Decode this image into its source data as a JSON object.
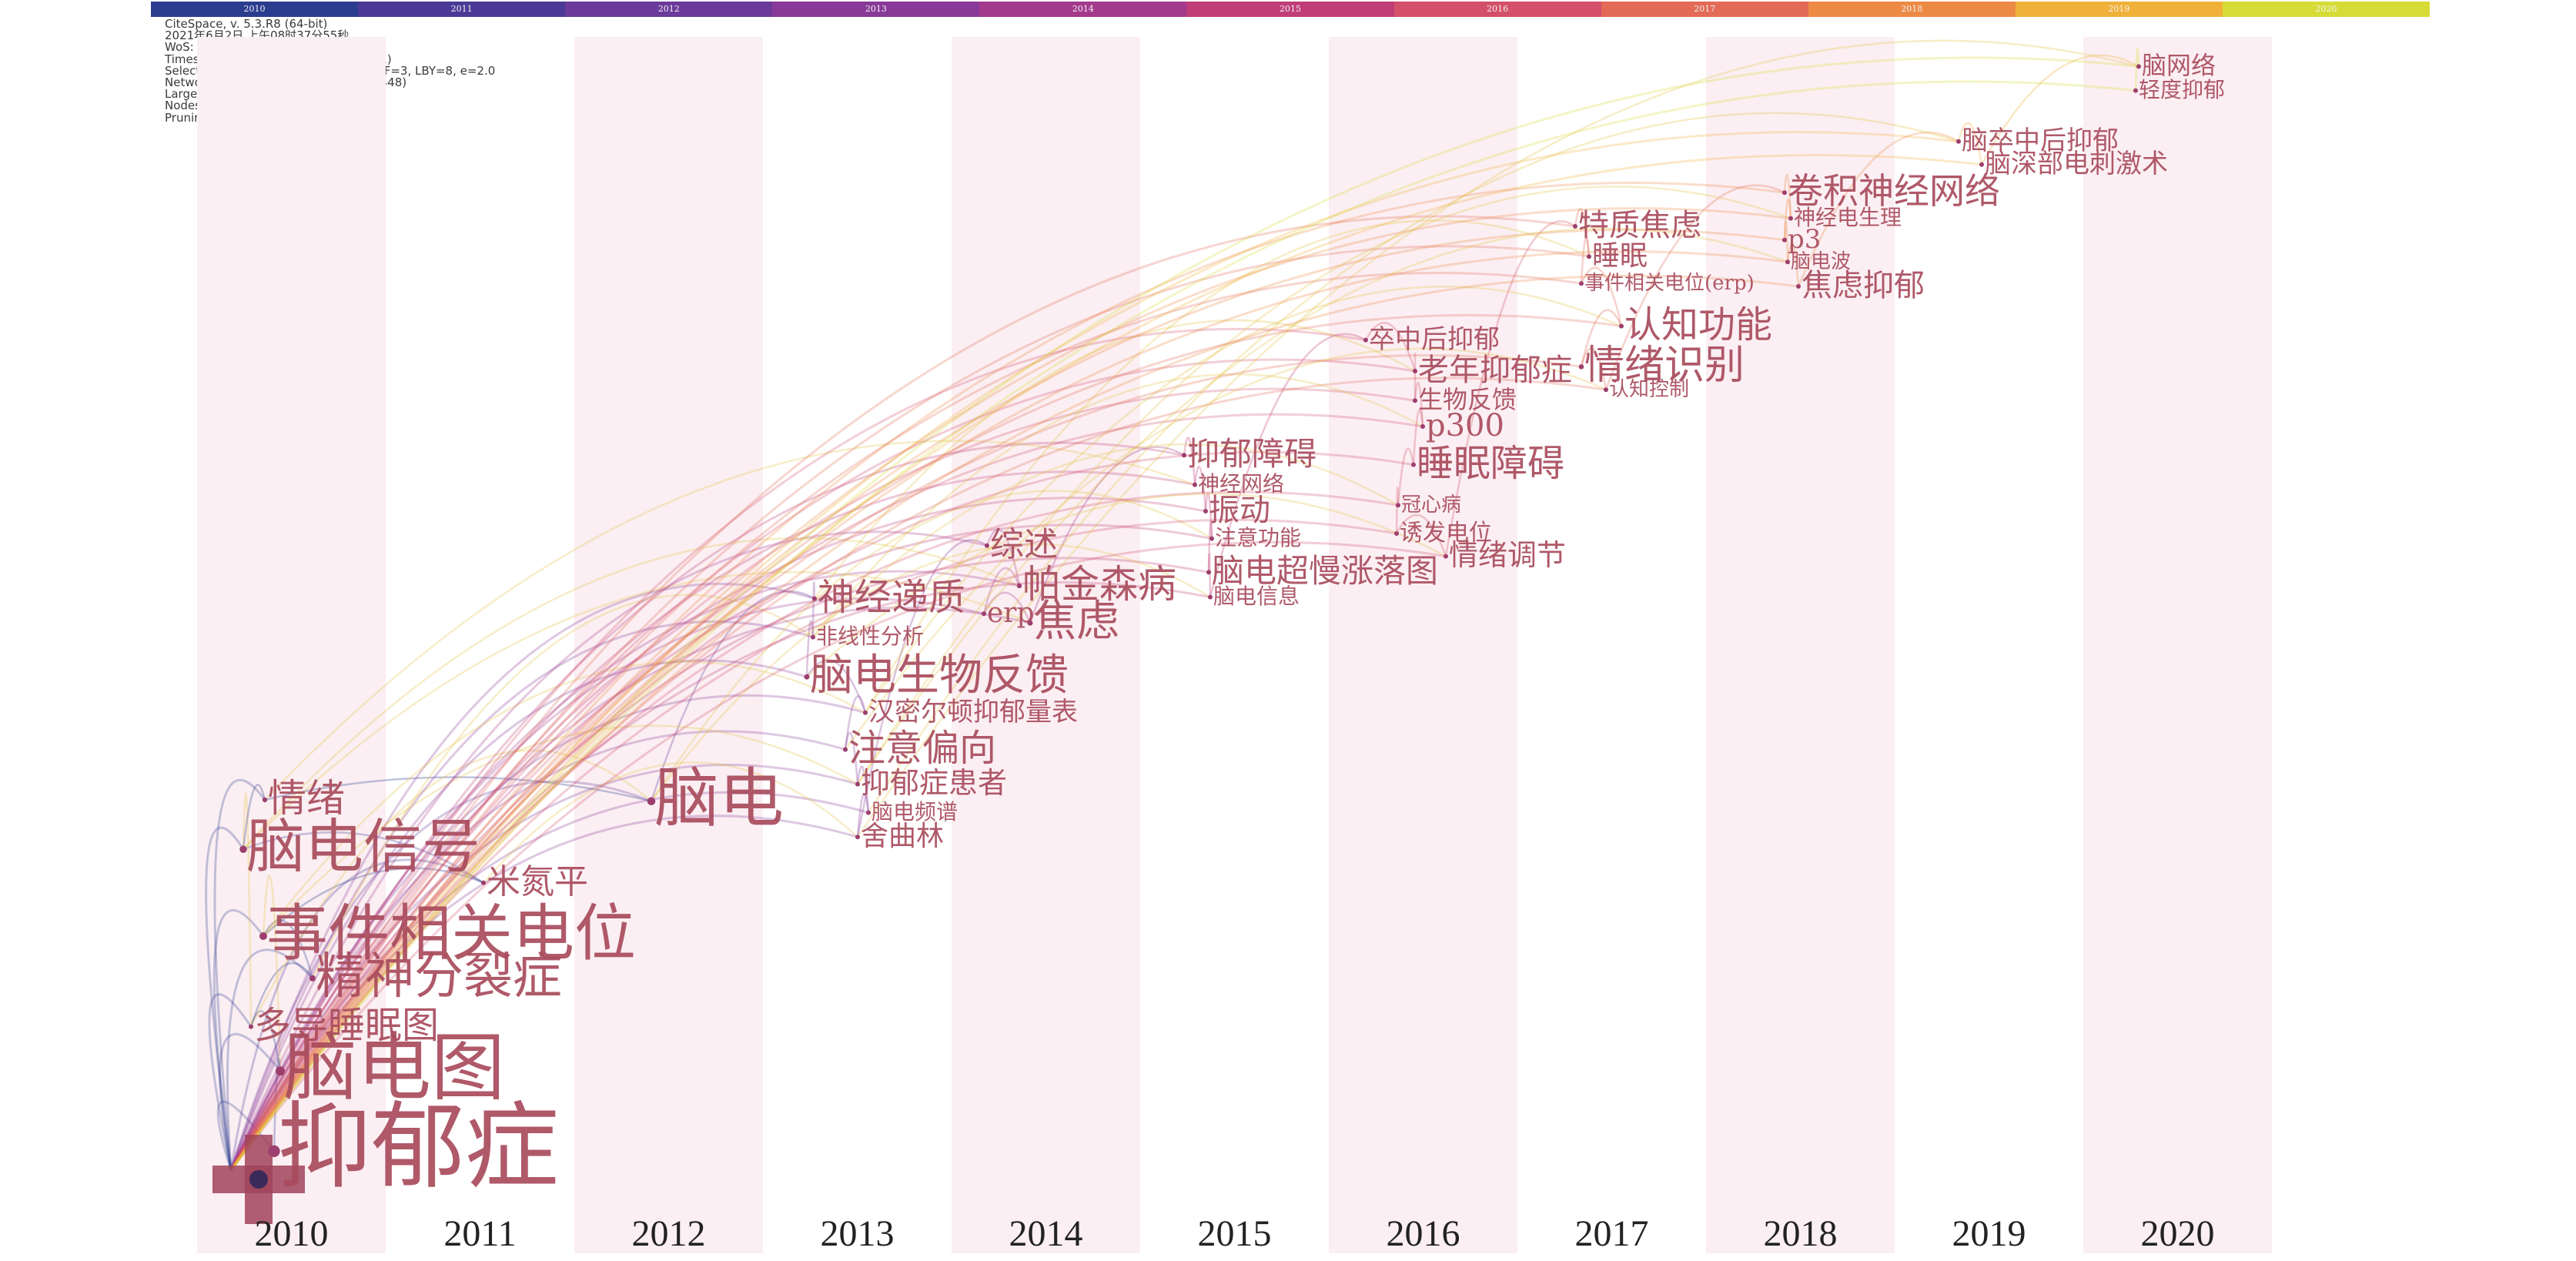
{
  "colorbar": {
    "years": [
      "2010",
      "2011",
      "2012",
      "2013",
      "2014",
      "2015",
      "2016",
      "2017",
      "2018",
      "2019",
      "2020"
    ],
    "colors": [
      "#2b3d8f",
      "#4b3a95",
      "#6b3a9a",
      "#883a98",
      "#a43a8c",
      "#c03d78",
      "#d4506a",
      "#e26a57",
      "#ec8a45",
      "#f0b13a",
      "#d6dc35"
    ]
  },
  "info": {
    "lines": [
      "CiteSpace, v. 5.3.R8 (64-bit)",
      "2021年6月2日 上午08时37分55秒",
      "WoS: E:\\Desktop\\单子\\6月1日\\中文\\data",
      "Timespan: 2010-2020 (Slice Length=1)",
      "Selection Criteria: Top 50 per slice, LRF=3, LBY=8, e=2.0",
      "Network: N=81, E=145 (Density=0.0448)",
      "Largest CC: 79 (97%)",
      "Nodes Labeled: 1.0%",
      "Pruning: Pathfinder"
    ]
  },
  "timeline": {
    "years": [
      "2010",
      "2011",
      "2012",
      "2013",
      "2014",
      "2015",
      "2016",
      "2017",
      "2018",
      "2019",
      "2020"
    ]
  },
  "keywords": [
    {
      "label": "抑郁症",
      "year": "2010"
    },
    {
      "label": "脑电图",
      "year": "2010"
    },
    {
      "label": "多导睡眠图",
      "year": "2010"
    },
    {
      "label": "精神分裂症",
      "year": "2010"
    },
    {
      "label": "事件相关电位",
      "year": "2010"
    },
    {
      "label": "米氮平",
      "year": "2011"
    },
    {
      "label": "脑电信号",
      "year": "2010"
    },
    {
      "label": "情绪",
      "year": "2010"
    },
    {
      "label": "脑电",
      "year": "2012"
    },
    {
      "label": "神经递质",
      "year": "2013"
    },
    {
      "label": "非线性分析",
      "year": "2013"
    },
    {
      "label": "脑电生物反馈",
      "year": "2013"
    },
    {
      "label": "汉密尔顿抑郁量表",
      "year": "2013"
    },
    {
      "label": "注意偏向",
      "year": "2013"
    },
    {
      "label": "抑郁症患者",
      "year": "2013"
    },
    {
      "label": "脑电频谱",
      "year": "2013"
    },
    {
      "label": "舍曲林",
      "year": "2013"
    },
    {
      "label": "综述",
      "year": "2014"
    },
    {
      "label": "帕金森病",
      "year": "2014"
    },
    {
      "label": "erp",
      "year": "2014"
    },
    {
      "label": "焦虑",
      "year": "2014"
    },
    {
      "label": "抑郁障碍",
      "year": "2015"
    },
    {
      "label": "神经网络",
      "year": "2015"
    },
    {
      "label": "振动",
      "year": "2015"
    },
    {
      "label": "注意功能",
      "year": "2015"
    },
    {
      "label": "脑电超慢涨落图",
      "year": "2015"
    },
    {
      "label": "脑电信息",
      "year": "2015"
    },
    {
      "label": "卒中后抑郁",
      "year": "2016"
    },
    {
      "label": "老年抑郁症",
      "year": "2016"
    },
    {
      "label": "生物反馈",
      "year": "2016"
    },
    {
      "label": "p300",
      "year": "2016"
    },
    {
      "label": "睡眠障碍",
      "year": "2016"
    },
    {
      "label": "冠心病",
      "year": "2016"
    },
    {
      "label": "诱发电位",
      "year": "2016"
    },
    {
      "label": "情绪调节",
      "year": "2016"
    },
    {
      "label": "特质焦虑",
      "year": "2017"
    },
    {
      "label": "睡眠",
      "year": "2017"
    },
    {
      "label": "事件相关电位(erp)",
      "year": "2017"
    },
    {
      "label": "认知功能",
      "year": "2017"
    },
    {
      "label": "情绪识别",
      "year": "2017"
    },
    {
      "label": "认知控制",
      "year": "2017"
    },
    {
      "label": "卷积神经网络",
      "year": "2018"
    },
    {
      "label": "神经电生理",
      "year": "2018"
    },
    {
      "label": "p3",
      "year": "2018"
    },
    {
      "label": "脑电波",
      "year": "2018"
    },
    {
      "label": "焦虑抑郁",
      "year": "2018"
    },
    {
      "label": "脑卒中后抑郁",
      "year": "2019"
    },
    {
      "label": "脑深部电刺激术",
      "year": "2019"
    },
    {
      "label": "脑网络",
      "year": "2020"
    },
    {
      "label": "轻度抑郁",
      "year": "2020"
    }
  ]
}
